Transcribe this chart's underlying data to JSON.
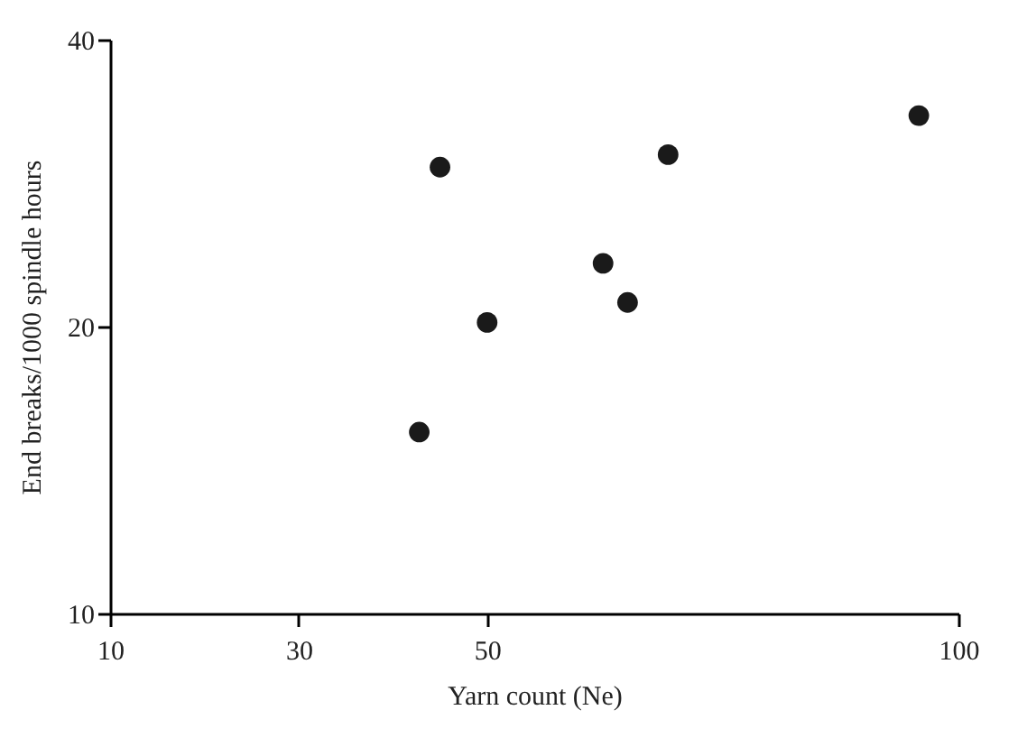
{
  "chart_data": {
    "type": "scatter",
    "xlabel": "Yarn count (Ne)",
    "ylabel": "End breaks/1000 spindle hours",
    "x": [
      42.8,
      45,
      50,
      62.3,
      64.9,
      69.2,
      95.8
    ],
    "values": [
      15.5,
      29.4,
      20.2,
      23.3,
      21.2,
      30.3,
      33.3
    ],
    "color": "#1a1a1a",
    "marker": "circle",
    "log": "y",
    "grid": false,
    "xlim": [
      10,
      100
    ],
    "xticks": [
      10,
      30,
      50,
      100
    ],
    "ylim": [
      10,
      40
    ],
    "yticks": [
      10,
      20,
      40
    ]
  }
}
